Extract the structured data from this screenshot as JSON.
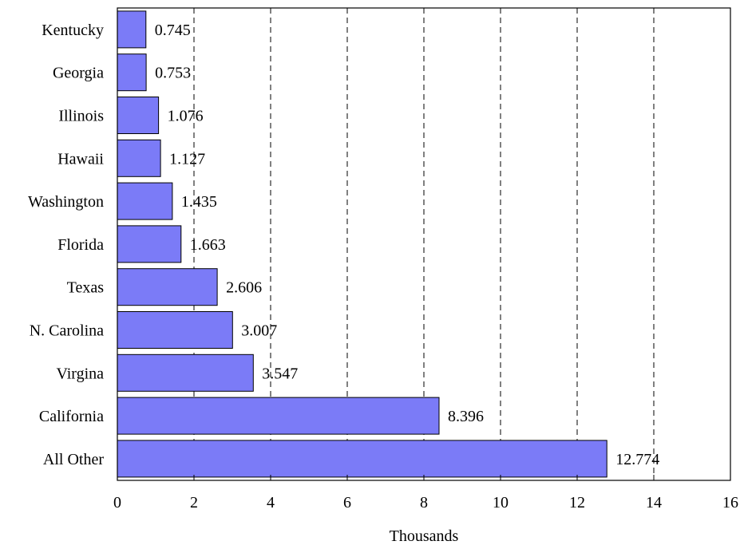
{
  "chart_data": {
    "type": "bar",
    "orientation": "horizontal",
    "categories": [
      "Kentucky",
      "Georgia",
      "Illinois",
      "Hawaii",
      "Washington",
      "Florida",
      "Texas",
      "N. Carolina",
      "Virgina",
      "California",
      "All Other"
    ],
    "values": [
      0.745,
      0.753,
      1.076,
      1.127,
      1.435,
      1.663,
      2.606,
      3.007,
      3.547,
      8.396,
      12.774
    ],
    "value_labels": [
      "0.745",
      "0.753",
      "1.076",
      "1.127",
      "1.435",
      "1.663",
      "2.606",
      "3.007",
      "3.547",
      "8.396",
      "12.774"
    ],
    "xlabel": "Thousands",
    "xlim": [
      0,
      16
    ],
    "x_ticks": [
      0,
      2,
      4,
      6,
      8,
      10,
      12,
      14,
      16
    ],
    "grid": "vertical dashed",
    "bar_color": "#7b7bf7"
  }
}
